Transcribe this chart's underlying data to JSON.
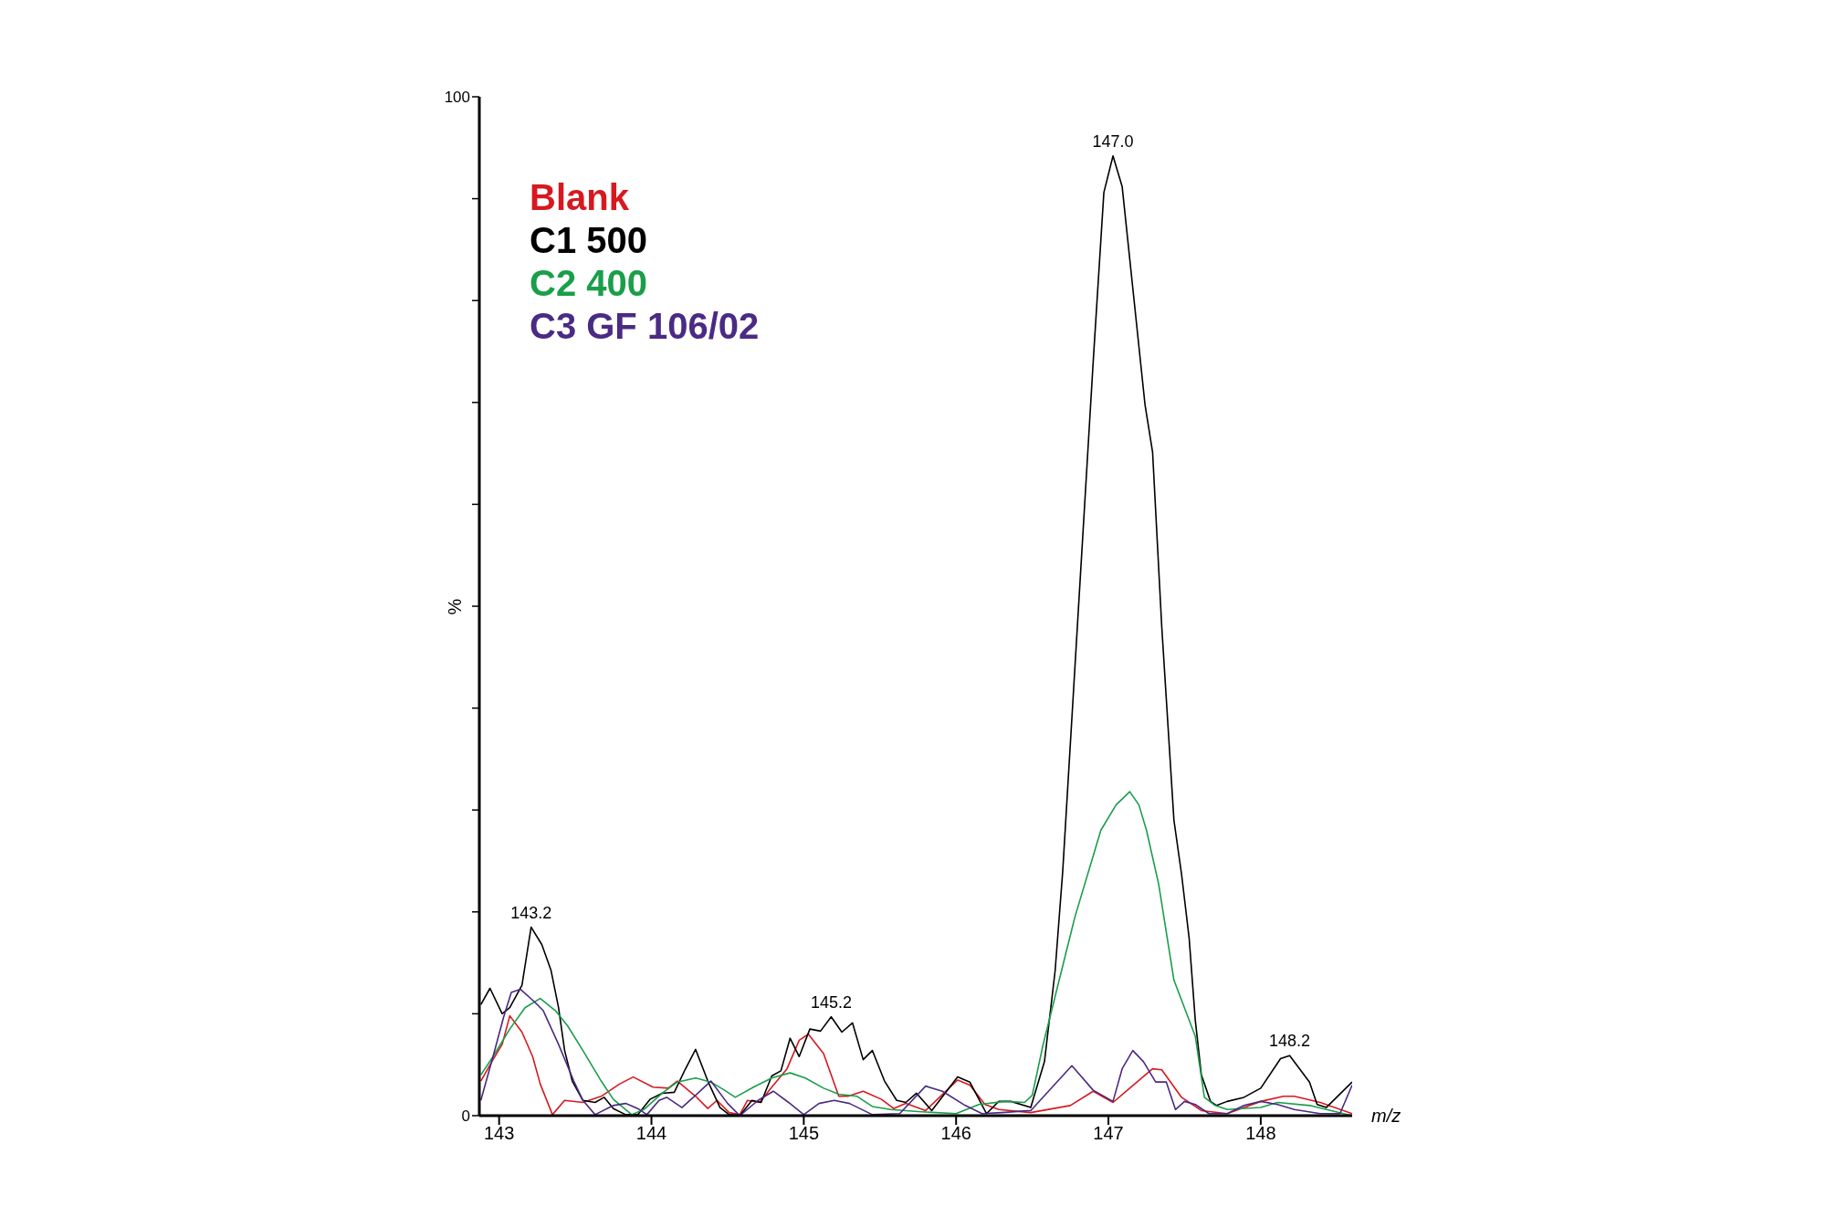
{
  "chart_data": {
    "type": "line",
    "xlabel": "m/z",
    "ylabel": "%",
    "xlim": [
      142.87,
      148.6
    ],
    "xticks": [
      143,
      144,
      145,
      146,
      147,
      148
    ],
    "ylim": [
      0,
      100
    ],
    "yticks": [
      0,
      {
        "value": 10,
        "label": null
      },
      {
        "value": 20,
        "label": null
      },
      {
        "value": 30,
        "label": null
      },
      {
        "value": 40,
        "label": null
      },
      {
        "value": 50,
        "label": null
      },
      {
        "value": 60,
        "label": null
      },
      {
        "value": 70,
        "label": null
      },
      {
        "value": 80,
        "label": null
      },
      {
        "value": 90,
        "label": null
      },
      100
    ],
    "grid": false,
    "legend": "top left",
    "marker": "none",
    "line_style": "solid",
    "annotations": [
      {
        "text": "143.2",
        "x": 143.21,
        "y": 18.5
      },
      {
        "text": "145.2",
        "x": 145.18,
        "y": 9.7
      },
      {
        "text": "147.0",
        "x": 147.03,
        "y": 94.2
      },
      {
        "text": "148.2",
        "x": 148.19,
        "y": 5.9
      }
    ],
    "series": [
      {
        "name": "Blank",
        "color": "#d7191f",
        "x": [
          142.88,
          142.96,
          143.02,
          143.07,
          143.15,
          143.22,
          143.27,
          143.35,
          143.43,
          143.55,
          143.67,
          143.79,
          143.88,
          144.01,
          144.11,
          144.17,
          144.29,
          144.37,
          144.43,
          144.51,
          144.58,
          144.63,
          144.71,
          144.79,
          144.89,
          144.97,
          145.03,
          145.13,
          145.23,
          145.29,
          145.39,
          145.51,
          145.59,
          145.67,
          145.8,
          146.01,
          146.09,
          146.19,
          146.28,
          146.49,
          146.75,
          146.9,
          147.03,
          147.14,
          147.29,
          147.35,
          147.48,
          147.61,
          147.78,
          148.0,
          148.15,
          148.22,
          148.39,
          148.6
        ],
        "values": [
          3.4,
          5.5,
          7.0,
          9.8,
          8.2,
          5.8,
          3.1,
          0.1,
          1.5,
          1.3,
          1.9,
          3.1,
          3.8,
          2.8,
          2.7,
          3.4,
          1.9,
          0.7,
          1.5,
          0.3,
          0.1,
          1.5,
          1.3,
          2.8,
          4.6,
          7.4,
          8.0,
          6.1,
          1.9,
          1.9,
          2.4,
          1.6,
          0.7,
          1.2,
          0.5,
          3.5,
          3.0,
          1.1,
          0.6,
          0.3,
          1.0,
          2.4,
          1.3,
          2.7,
          4.6,
          4.5,
          1.8,
          0.5,
          0.2,
          1.4,
          1.9,
          1.9,
          1.3,
          0.2
        ]
      },
      {
        "name": "C1 500",
        "color": "#000000",
        "x": [
          142.88,
          142.94,
          143.02,
          143.07,
          143.15,
          143.21,
          143.28,
          143.34,
          143.39,
          143.43,
          143.48,
          143.55,
          143.63,
          143.69,
          143.75,
          143.83,
          143.91,
          143.99,
          144.07,
          144.15,
          144.22,
          144.29,
          144.37,
          144.45,
          144.51,
          144.58,
          144.66,
          144.72,
          144.79,
          144.85,
          144.91,
          144.97,
          145.04,
          145.11,
          145.18,
          145.25,
          145.32,
          145.39,
          145.45,
          145.53,
          145.61,
          145.67,
          145.74,
          145.84,
          146.01,
          146.09,
          146.2,
          146.28,
          146.36,
          146.49,
          146.58,
          146.65,
          146.7,
          146.8,
          146.9,
          146.97,
          147.03,
          147.09,
          147.24,
          147.29,
          147.35,
          147.43,
          147.48,
          147.53,
          147.57,
          147.61,
          147.67,
          147.71,
          147.78,
          147.89,
          148.0,
          148.13,
          148.19,
          148.32,
          148.37,
          148.43,
          148.6
        ],
        "values": [
          10.9,
          12.5,
          10.0,
          10.6,
          12.8,
          18.5,
          16.8,
          14.3,
          10.6,
          6.4,
          3.4,
          1.5,
          1.3,
          1.8,
          0.7,
          0.1,
          0.1,
          1.6,
          2.2,
          2.3,
          4.5,
          6.5,
          3.4,
          0.8,
          0.1,
          0.0,
          1.5,
          1.3,
          3.9,
          4.4,
          7.6,
          5.8,
          8.5,
          8.3,
          9.7,
          8.2,
          9.1,
          5.5,
          6.4,
          3.4,
          1.5,
          1.3,
          2.2,
          0.5,
          3.8,
          3.3,
          0.2,
          1.4,
          1.4,
          0.8,
          5.3,
          14.2,
          24,
          49,
          74,
          90.6,
          94.2,
          91.2,
          69.8,
          65.1,
          48,
          29,
          23.7,
          17.4,
          9.4,
          4.0,
          1.4,
          1.0,
          1.4,
          1.8,
          2.7,
          5.6,
          5.9,
          3.3,
          1.1,
          0.8,
          3.3
        ]
      },
      {
        "name": "C2 400",
        "color": "#1a9e4a",
        "x": [
          142.88,
          142.96,
          143.07,
          143.17,
          143.27,
          143.37,
          143.45,
          143.55,
          143.67,
          143.75,
          143.87,
          143.95,
          144.07,
          144.17,
          144.29,
          144.39,
          144.48,
          144.55,
          144.67,
          144.79,
          144.91,
          145.01,
          145.13,
          145.23,
          145.35,
          145.45,
          145.57,
          145.75,
          146.0,
          146.15,
          146.32,
          146.45,
          146.5,
          146.57,
          146.78,
          146.95,
          147.05,
          147.14,
          147.2,
          147.25,
          147.33,
          147.43,
          147.57,
          147.63,
          147.7,
          147.78,
          148.0,
          148.11,
          148.32,
          148.6
        ],
        "values": [
          4.0,
          5.8,
          8.5,
          10.6,
          11.5,
          10.3,
          8.8,
          6.4,
          3.4,
          1.6,
          0.1,
          0.6,
          2.2,
          3.3,
          3.7,
          3.3,
          2.5,
          1.8,
          2.8,
          3.7,
          4.2,
          3.7,
          2.7,
          2.1,
          1.9,
          0.9,
          0.6,
          0.4,
          0.2,
          1.1,
          1.4,
          1.3,
          2.0,
          6.9,
          19.5,
          28,
          30.5,
          31.8,
          30.5,
          28,
          22.7,
          13.3,
          7.8,
          1.8,
          1.0,
          0.6,
          0.8,
          1.3,
          1.0,
          0.0
        ]
      },
      {
        "name": "C3 GF 106/02",
        "color": "#4b2a84",
        "x": [
          142.88,
          142.96,
          143.03,
          143.08,
          143.14,
          143.23,
          143.29,
          143.39,
          143.49,
          143.55,
          143.63,
          143.75,
          143.83,
          143.91,
          143.97,
          144.05,
          144.1,
          144.2,
          144.29,
          144.39,
          144.5,
          144.58,
          144.7,
          144.8,
          144.9,
          145.0,
          145.1,
          145.2,
          145.3,
          145.45,
          145.63,
          145.8,
          145.91,
          146.06,
          146.17,
          146.3,
          146.49,
          146.76,
          146.9,
          147.03,
          147.09,
          147.16,
          147.23,
          147.31,
          147.38,
          147.44,
          147.5,
          147.57,
          147.66,
          147.78,
          147.89,
          148.0,
          148.11,
          148.22,
          148.39,
          148.52,
          148.6
        ],
        "values": [
          1.5,
          5.8,
          9.7,
          12.1,
          12.4,
          11.2,
          10.3,
          7.0,
          3.4,
          1.5,
          0.1,
          1.0,
          1.2,
          0.7,
          0.1,
          1.5,
          1.8,
          0.8,
          2.0,
          3.4,
          1.2,
          0.0,
          1.5,
          2.4,
          1.3,
          0.1,
          1.2,
          1.5,
          1.2,
          0.1,
          0.2,
          2.9,
          2.4,
          1.0,
          0.2,
          0.3,
          0.5,
          4.9,
          2.5,
          1.4,
          4.6,
          6.4,
          5.3,
          3.3,
          3.3,
          0.6,
          1.4,
          1.1,
          0.2,
          0.2,
          1.0,
          1.4,
          1.1,
          0.6,
          0.2,
          0.2,
          3.0
        ]
      }
    ]
  }
}
